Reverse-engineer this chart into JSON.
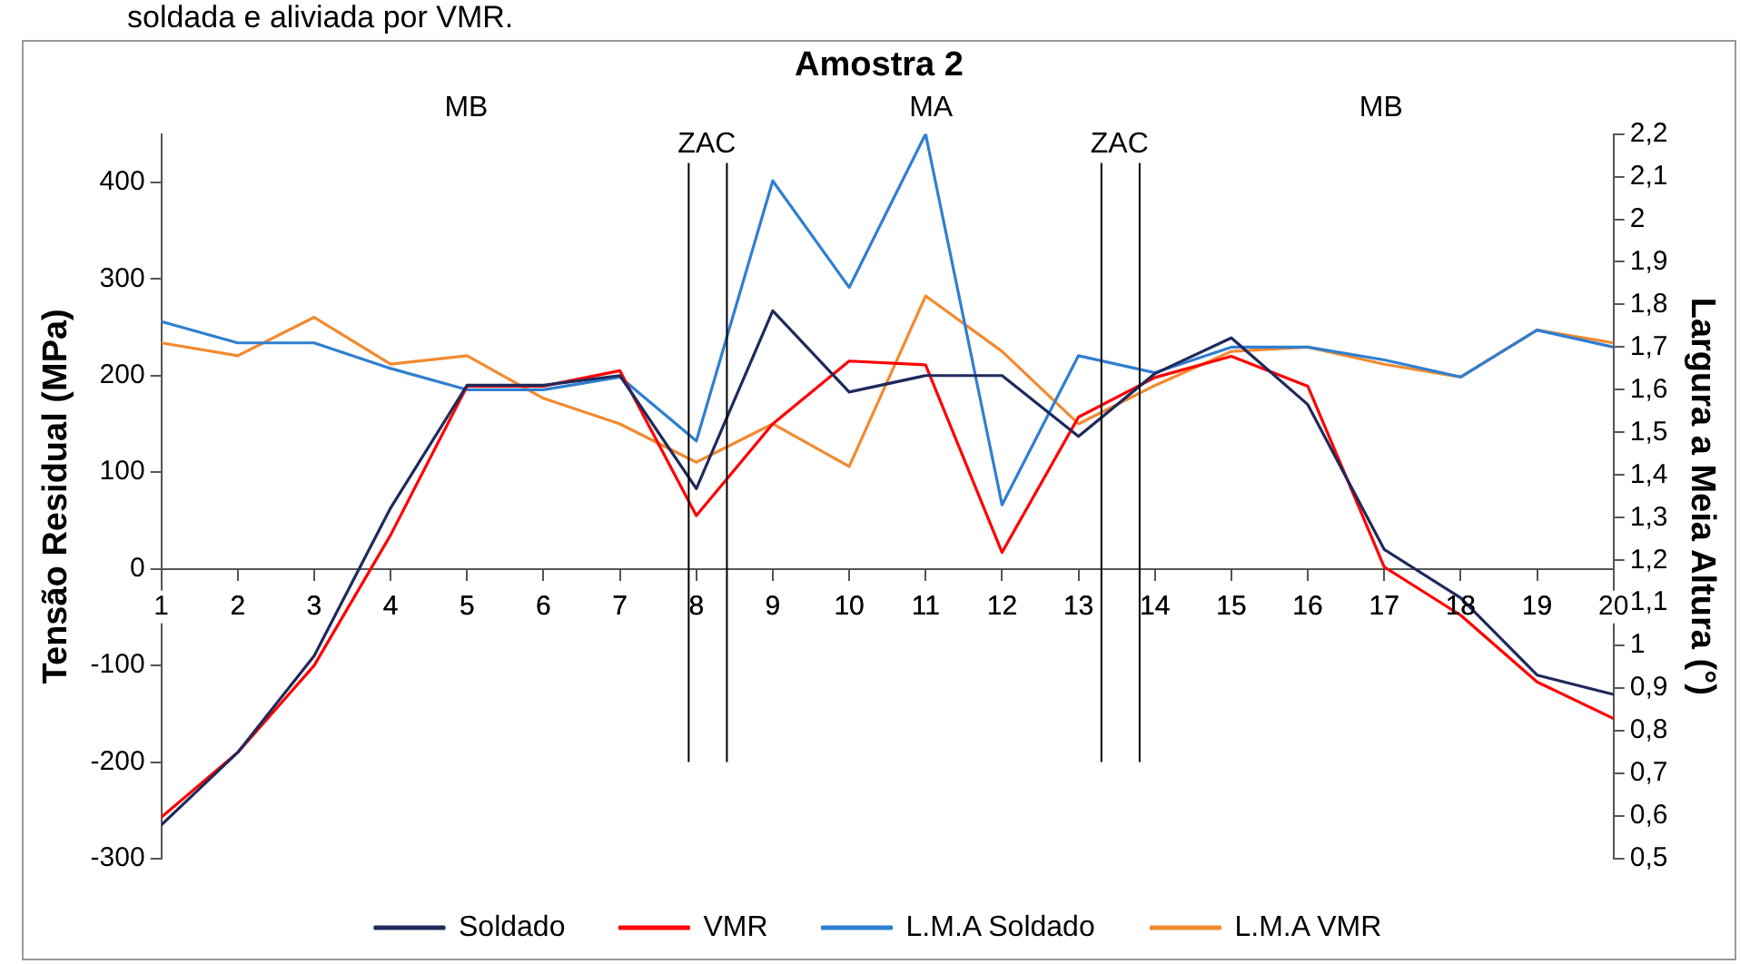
{
  "chart_data": {
    "type": "line",
    "title": "Amostra 2",
    "ylabel": "Tensão Residual (MPa)",
    "y2label": "Largura a Meia Altura (°)",
    "x": [
      1,
      2,
      3,
      4,
      5,
      6,
      7,
      8,
      9,
      10,
      11,
      12,
      13,
      14,
      15,
      16,
      17,
      18,
      19,
      20
    ],
    "xlim": [
      1,
      20
    ],
    "xticks": [
      1,
      2,
      3,
      4,
      5,
      6,
      7,
      8,
      9,
      10,
      11,
      12,
      13,
      14,
      15,
      16,
      17,
      18,
      19,
      20
    ],
    "ylim": [
      -300,
      450
    ],
    "yticks": [
      -300,
      -200,
      -100,
      0,
      100,
      200,
      300,
      400
    ],
    "y2lim": [
      0.5,
      2.2
    ],
    "y2ticks": [
      {
        "value": 0.5,
        "label": "0,5"
      },
      {
        "value": 0.6,
        "label": "0,6"
      },
      {
        "value": 0.7,
        "label": "0,7"
      },
      {
        "value": 0.8,
        "label": "0,8"
      },
      {
        "value": 0.9,
        "label": "0,9"
      },
      1,
      {
        "value": 1.1,
        "label": "1,1"
      },
      {
        "value": 1.2,
        "label": "1,2"
      },
      {
        "value": 1.3,
        "label": "1,3"
      },
      {
        "value": 1.4,
        "label": "1,4"
      },
      {
        "value": 1.5,
        "label": "1,5"
      },
      {
        "value": 1.6,
        "label": "1,6"
      },
      {
        "value": 1.7,
        "label": "1,7"
      },
      {
        "value": 1.8,
        "label": "1,8"
      },
      {
        "value": 1.9,
        "label": "1,9"
      },
      2,
      {
        "value": 2.1,
        "label": "2,1"
      },
      {
        "value": 2.2,
        "label": "2,2"
      }
    ],
    "series": [
      {
        "name": "Soldado",
        "color": "#1f2a5c",
        "values": [
          -265,
          -190,
          -90,
          63,
          190,
          190,
          200,
          83,
          267,
          183,
          200,
          200,
          137,
          202,
          239,
          170,
          20,
          -30,
          -110,
          -130
        ]
      },
      {
        "name": "VMR",
        "color": "#ff0000",
        "values": [
          -257,
          -190,
          -100,
          35,
          189,
          189,
          205,
          55,
          150,
          215,
          211,
          17,
          157,
          198,
          220,
          189,
          2,
          -48,
          -117,
          -155
        ]
      },
      {
        "name": "L.M.A Soldado",
        "color": "#2f7fd0",
        "axis": "y2",
        "values": [
          1.76,
          1.71,
          1.71,
          1.65,
          1.6,
          1.6,
          1.63,
          1.48,
          2.09,
          1.84,
          2.2,
          1.33,
          1.68,
          1.64,
          1.7,
          1.7,
          1.67,
          1.63,
          1.74,
          1.7
        ]
      },
      {
        "name": "L.M.A VMR",
        "color": "#f28a30",
        "axis": "y2",
        "values": [
          1.71,
          1.68,
          1.77,
          1.66,
          1.68,
          1.58,
          1.52,
          1.43,
          1.52,
          1.42,
          1.82,
          1.69,
          1.52,
          1.61,
          1.69,
          1.7,
          1.66,
          1.63,
          1.74,
          1.71
        ]
      }
    ],
    "ref_lines": [
      {
        "axis": "x",
        "value": 7.9,
        "label": "ZAC"
      },
      {
        "axis": "x",
        "value": 8.4
      },
      {
        "axis": "x",
        "value": 13.3,
        "label": "ZAC"
      },
      {
        "axis": "x",
        "value": 13.8
      }
    ],
    "annotations": [
      "soldada e aliviada por VMR.",
      "MB",
      "MA",
      "MB"
    ],
    "legend": "bottom",
    "grid": false,
    "marker": "none",
    "line_style": "solid"
  }
}
